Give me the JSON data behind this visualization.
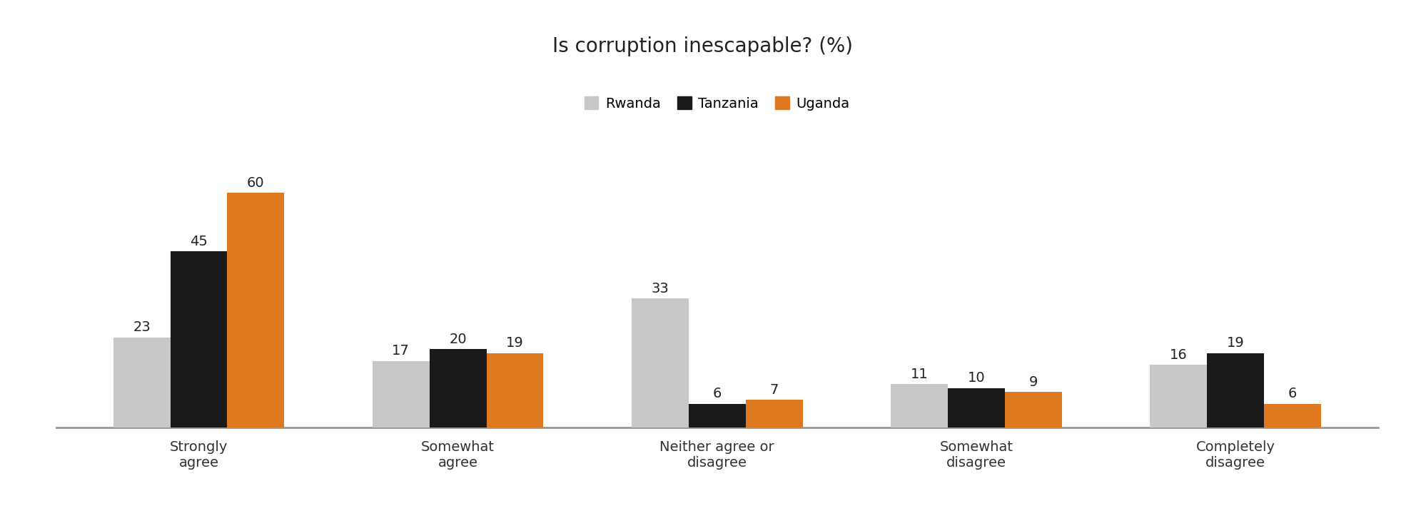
{
  "title": "Is corruption inescapable? (%)",
  "categories": [
    "Strongly\nagree",
    "Somewhat\nagree",
    "Neither agree or\ndisagree",
    "Somewhat\ndisagree",
    "Completely\ndisagree"
  ],
  "series": {
    "Rwanda": [
      23,
      17,
      33,
      11,
      16
    ],
    "Tanzania": [
      45,
      20,
      6,
      10,
      19
    ],
    "Uganda": [
      60,
      19,
      7,
      9,
      6
    ]
  },
  "colors": {
    "Rwanda": "#c8c8c8",
    "Tanzania": "#1a1a1a",
    "Uganda": "#e07820"
  },
  "legend_labels": [
    "Rwanda",
    "Tanzania",
    "Uganda"
  ],
  "bar_width": 0.22,
  "ylim": [
    0,
    72
  ],
  "label_fontsize": 14,
  "title_fontsize": 20,
  "tick_fontsize": 14,
  "legend_fontsize": 14,
  "background_color": "#ffffff",
  "axis_line_color": "#999999"
}
